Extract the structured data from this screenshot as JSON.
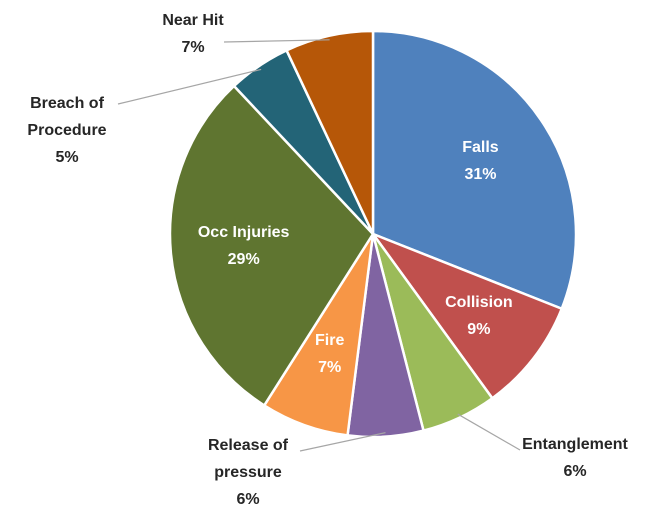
{
  "chart_data": {
    "type": "pie",
    "categories": [
      "Falls",
      "Collision",
      "Entanglement",
      "Release of pressure",
      "Fire",
      "Occ Injuries",
      "Breach of Procedure",
      "Near Hit"
    ],
    "values": [
      31,
      9,
      6,
      6,
      7,
      29,
      5,
      7
    ],
    "value_labels": [
      "31%",
      "9%",
      "6%",
      "6%",
      "7%",
      "29%",
      "5%",
      "7%"
    ],
    "colors": [
      "#4f81bd",
      "#c0504d",
      "#9bbb59",
      "#8064a2",
      "#f79646",
      "#5f7530",
      "#236477",
      "#b65708"
    ]
  }
}
